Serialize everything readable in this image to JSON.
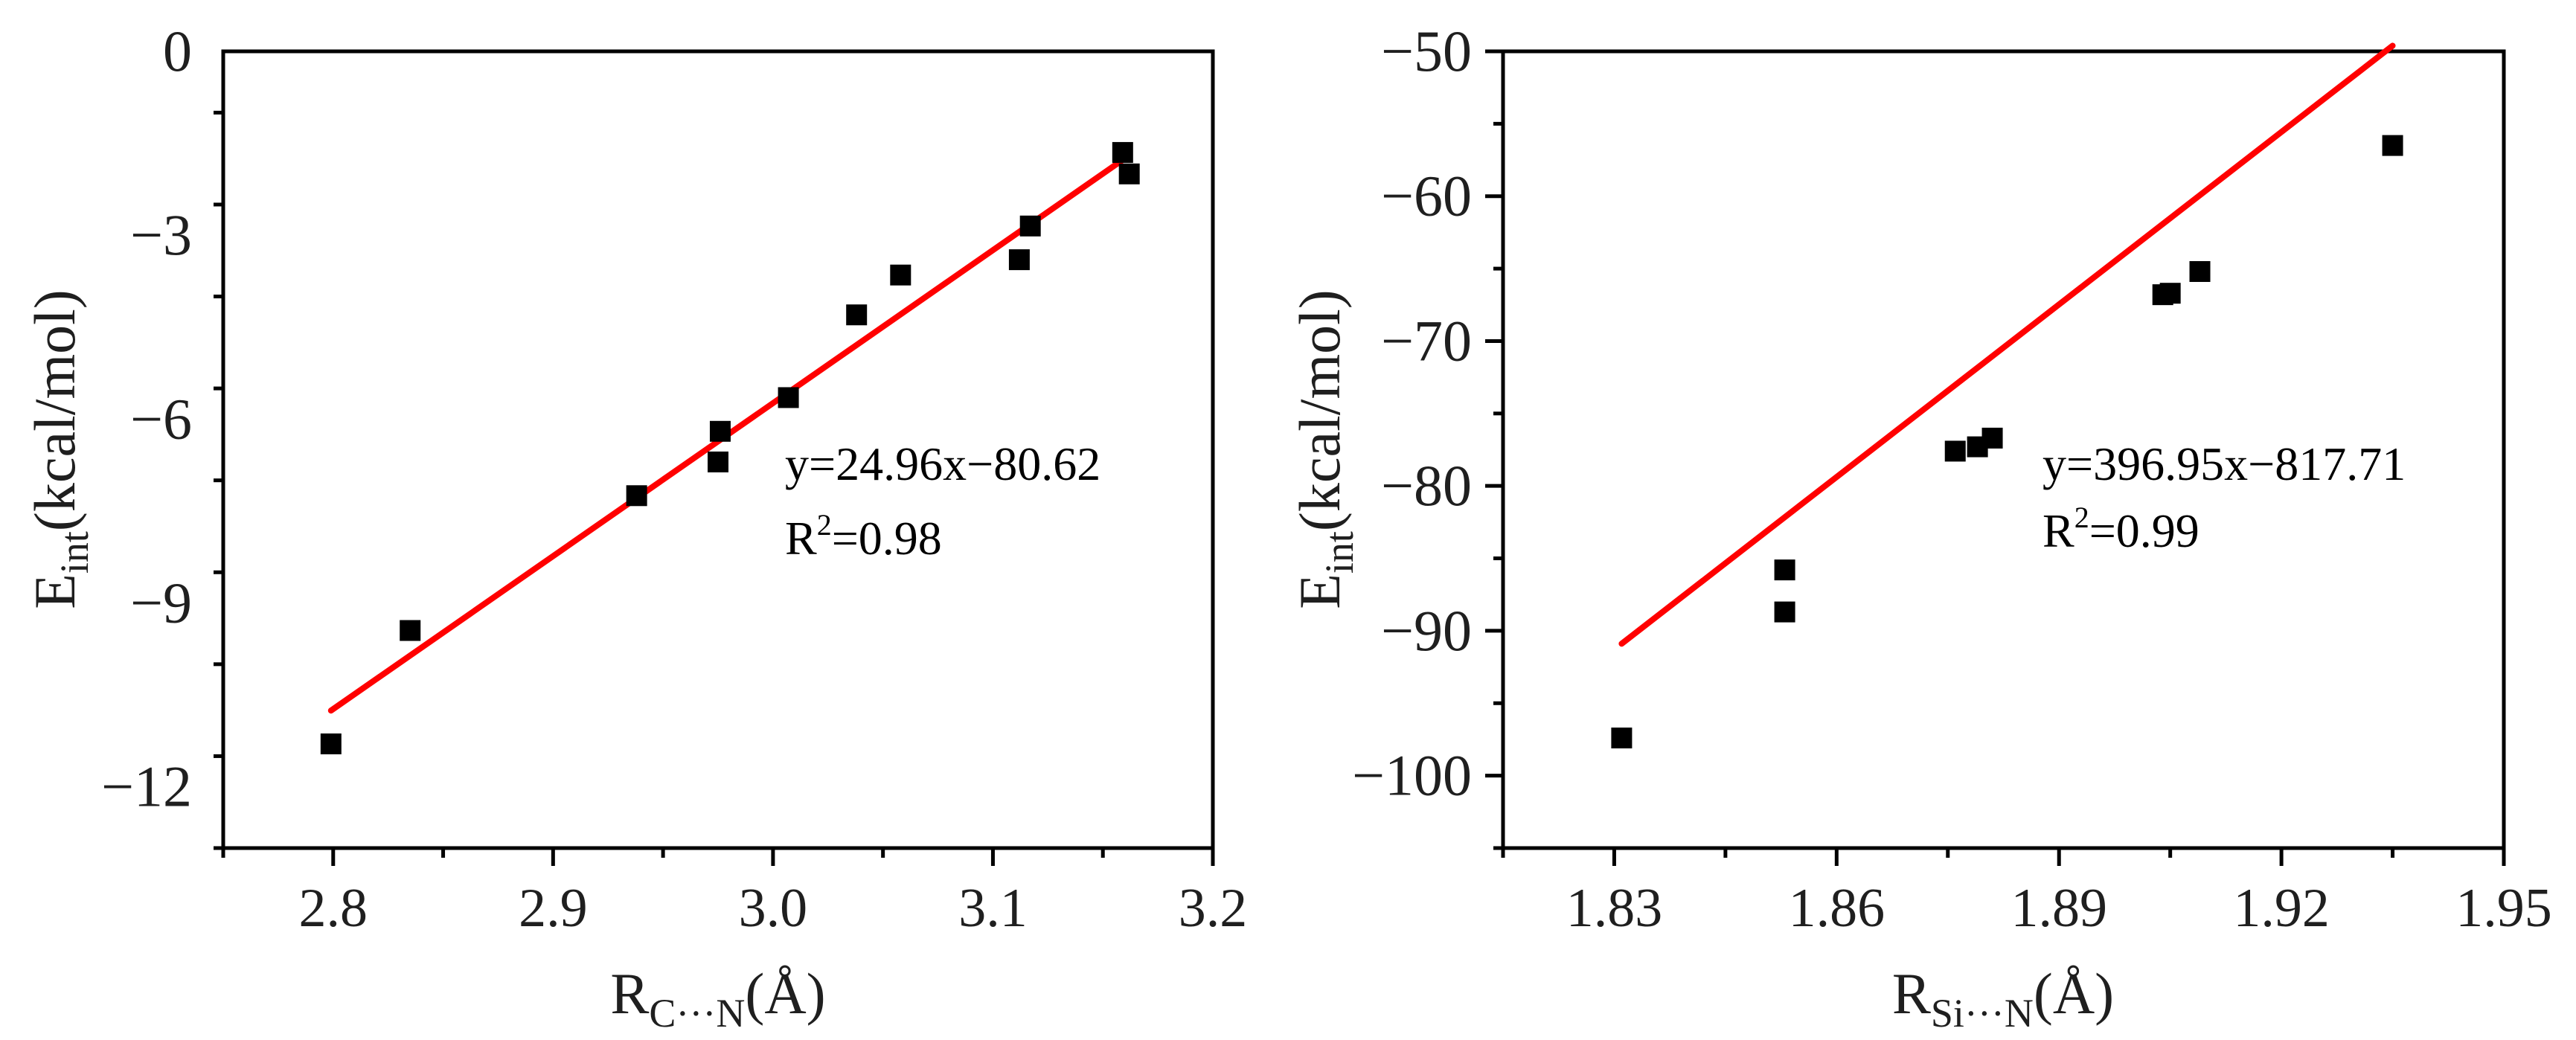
{
  "chart_data": [
    {
      "type": "scatter",
      "xlabel": {
        "main": "R",
        "sub": "C···N",
        "unit": "(Å)"
      },
      "ylabel": {
        "main": "E",
        "sub": "int",
        "unit": "(kcal/mol)"
      },
      "xlim": [
        2.75,
        3.2
      ],
      "ylim": [
        -13,
        0
      ],
      "xticks": [
        2.8,
        2.9,
        3.0,
        3.1,
        3.2
      ],
      "xtick_labels": [
        "2.8",
        "2.9",
        "3.0",
        "3.1",
        "3.2"
      ],
      "yticks": [
        0,
        -3,
        -6,
        -9,
        -12
      ],
      "ytick_labels": [
        "0",
        "−3",
        "−6",
        "−9",
        "−12"
      ],
      "x_minor_step": 0.05,
      "y_minor_step": 1.5,
      "series": [
        {
          "name": "data",
          "marker": "square",
          "color": "#000000",
          "points": [
            [
              2.799,
              -11.3
            ],
            [
              2.835,
              -9.45
            ],
            [
              2.938,
              -7.25
            ],
            [
              2.975,
              -6.7
            ],
            [
              2.976,
              -6.2
            ],
            [
              3.007,
              -5.65
            ],
            [
              3.038,
              -4.3
            ],
            [
              3.058,
              -3.65
            ],
            [
              3.112,
              -3.4
            ],
            [
              3.117,
              -2.85
            ],
            [
              3.159,
              -1.65
            ],
            [
              3.162,
              -2.0
            ]
          ]
        }
      ],
      "fit": {
        "slope": 24.96,
        "intercept": -80.62,
        "x_range": [
          2.799,
          3.162
        ],
        "color": "#ff0000"
      },
      "annotation": {
        "equation": "y=24.96x−80.62",
        "r2_prefix": "R",
        "r2_sup": "2",
        "r2_value": "=0.98"
      }
    },
    {
      "type": "scatter",
      "xlabel": {
        "main": "R",
        "sub": "Si···N",
        "unit": "(Å)"
      },
      "ylabel": {
        "main": "E",
        "sub": "int",
        "unit": "(kcal/mol)"
      },
      "xlim": [
        1.815,
        1.95
      ],
      "ylim": [
        -105,
        -50
      ],
      "xticks": [
        1.83,
        1.86,
        1.89,
        1.92,
        1.95
      ],
      "xtick_labels": [
        "1.83",
        "1.86",
        "1.89",
        "1.92",
        "1.95"
      ],
      "yticks": [
        -50,
        -60,
        -70,
        -80,
        -90,
        -100
      ],
      "ytick_labels": [
        "−50",
        "−60",
        "−70",
        "−80",
        "−90",
        "−100"
      ],
      "x_minor_step": 0.015,
      "y_minor_step": 5,
      "series": [
        {
          "name": "data",
          "marker": "square",
          "color": "#000000",
          "points": [
            [
              1.831,
              -97.4
            ],
            [
              1.853,
              -85.8
            ],
            [
              1.853,
              -88.7
            ],
            [
              1.876,
              -77.6
            ],
            [
              1.879,
              -77.3
            ],
            [
              1.881,
              -76.7
            ],
            [
              1.904,
              -66.8
            ],
            [
              1.905,
              -66.7
            ],
            [
              1.909,
              -65.2
            ],
            [
              1.935,
              -56.5
            ]
          ]
        }
      ],
      "fit": {
        "slope": 396.95,
        "intercept": -817.71,
        "x_range": [
          1.831,
          1.935
        ],
        "color": "#ff0000"
      },
      "annotation": {
        "equation": "y=396.95x−817.71",
        "r2_prefix": "R",
        "r2_sup": "2",
        "r2_value": "=0.99"
      }
    }
  ]
}
